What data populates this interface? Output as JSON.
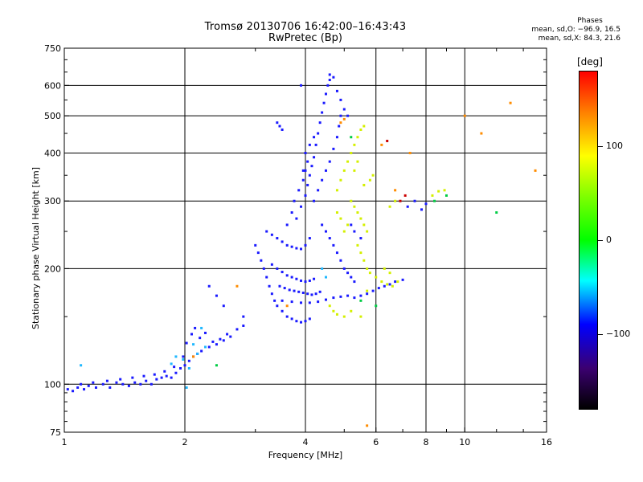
{
  "header": {
    "title_line1": "Tromsø 20130706 16:42:00–16:43:43",
    "title_line2": "RwPretec (Bp)"
  },
  "phases_box": {
    "heading": "Phases",
    "line_o": "mean, sd,O: −96.9, 16.5",
    "line_x": "mean, sd,X:  84.3, 21.6"
  },
  "colorbar": {
    "unit_label": "[deg]",
    "ticks": [
      {
        "value": 100,
        "label": "100"
      },
      {
        "value": 0,
        "label": "0"
      },
      {
        "value": -100,
        "label": "−100"
      }
    ],
    "range": [
      -180,
      180
    ],
    "colors": [
      "#000000",
      "#3b0070",
      "#0000ff",
      "#00ffff",
      "#00ff00",
      "#7fff00",
      "#ffff00",
      "#ff7f00",
      "#ff0000"
    ]
  },
  "chart_data": {
    "type": "scatter",
    "xlabel": "Frequency [MHz]",
    "ylabel": "Stationary phase Virtual Height [km]",
    "x_scale": "log",
    "y_scale": "log",
    "xlim": [
      1,
      16
    ],
    "ylim": [
      75,
      750
    ],
    "x_ticks": [
      1,
      2,
      4,
      6,
      8,
      10,
      16
    ],
    "x_tick_labels": [
      "1",
      "2",
      "4",
      "6",
      "8",
      "10",
      "16"
    ],
    "y_ticks": [
      75,
      100,
      200,
      300,
      400,
      500,
      600,
      750
    ],
    "y_tick_labels": [
      "75",
      "100",
      "200",
      "300",
      "400",
      "500",
      "600",
      "750"
    ],
    "grid": true,
    "series": [
      {
        "color": "#1a1aff",
        "points": [
          [
            1.02,
            97
          ],
          [
            1.05,
            96
          ],
          [
            1.08,
            98
          ],
          [
            1.12,
            97
          ],
          [
            1.15,
            99
          ],
          [
            1.2,
            98
          ],
          [
            1.25,
            100
          ],
          [
            1.3,
            98
          ],
          [
            1.35,
            101
          ],
          [
            1.4,
            100
          ],
          [
            1.45,
            99
          ],
          [
            1.5,
            101
          ],
          [
            1.55,
            100
          ],
          [
            1.6,
            102
          ],
          [
            1.65,
            100
          ],
          [
            1.7,
            103
          ],
          [
            1.75,
            104
          ],
          [
            1.8,
            105
          ],
          [
            1.85,
            104
          ],
          [
            1.9,
            107
          ],
          [
            1.95,
            110
          ],
          [
            2.0,
            112
          ],
          [
            2.05,
            115
          ],
          [
            2.1,
            118
          ],
          [
            2.15,
            120
          ],
          [
            2.2,
            122
          ],
          [
            2.3,
            125
          ],
          [
            2.4,
            127
          ],
          [
            2.5,
            130
          ],
          [
            2.6,
            133
          ],
          [
            1.1,
            100
          ],
          [
            1.18,
            101
          ],
          [
            1.28,
            102
          ],
          [
            1.38,
            103
          ],
          [
            1.48,
            104
          ],
          [
            1.58,
            105
          ],
          [
            1.68,
            106
          ],
          [
            1.78,
            108
          ],
          [
            1.88,
            111
          ],
          [
            1.98,
            118
          ],
          [
            2.02,
            128
          ],
          [
            2.08,
            135
          ],
          [
            2.12,
            140
          ],
          [
            2.18,
            132
          ],
          [
            2.25,
            136
          ],
          [
            2.35,
            129
          ],
          [
            2.45,
            131
          ],
          [
            2.55,
            135
          ],
          [
            2.7,
            139
          ],
          [
            2.8,
            142
          ],
          [
            2.4,
            170
          ],
          [
            2.3,
            180
          ],
          [
            2.5,
            160
          ],
          [
            2.8,
            150
          ],
          [
            3.0,
            230
          ],
          [
            3.05,
            220
          ],
          [
            3.1,
            210
          ],
          [
            3.15,
            200
          ],
          [
            3.2,
            190
          ],
          [
            3.25,
            180
          ],
          [
            3.3,
            172
          ],
          [
            3.35,
            165
          ],
          [
            3.4,
            160
          ],
          [
            3.5,
            155
          ],
          [
            3.6,
            150
          ],
          [
            3.7,
            148
          ],
          [
            3.8,
            146
          ],
          [
            3.9,
            145
          ],
          [
            4.0,
            146
          ],
          [
            4.1,
            148
          ],
          [
            3.2,
            250
          ],
          [
            3.3,
            245
          ],
          [
            3.4,
            240
          ],
          [
            3.5,
            235
          ],
          [
            3.6,
            230
          ],
          [
            3.7,
            228
          ],
          [
            3.8,
            226
          ],
          [
            3.9,
            225
          ],
          [
            4.0,
            230
          ],
          [
            4.1,
            240
          ],
          [
            3.3,
            205
          ],
          [
            3.4,
            200
          ],
          [
            3.5,
            196
          ],
          [
            3.6,
            192
          ],
          [
            3.7,
            190
          ],
          [
            3.8,
            188
          ],
          [
            3.9,
            186
          ],
          [
            4.0,
            185
          ],
          [
            4.1,
            186
          ],
          [
            4.2,
            188
          ],
          [
            3.45,
            180
          ],
          [
            3.55,
            178
          ],
          [
            3.65,
            176
          ],
          [
            3.75,
            175
          ],
          [
            3.85,
            174
          ],
          [
            3.95,
            173
          ],
          [
            4.05,
            172
          ],
          [
            4.15,
            171
          ],
          [
            4.25,
            172
          ],
          [
            4.35,
            174
          ],
          [
            3.5,
            165
          ],
          [
            3.7,
            164
          ],
          [
            3.9,
            163
          ],
          [
            4.1,
            163
          ],
          [
            4.3,
            164
          ],
          [
            4.5,
            166
          ],
          [
            4.7,
            168
          ],
          [
            4.9,
            169
          ],
          [
            5.1,
            170
          ],
          [
            5.3,
            168
          ],
          [
            3.8,
            270
          ],
          [
            3.9,
            290
          ],
          [
            4.0,
            310
          ],
          [
            4.05,
            330
          ],
          [
            4.1,
            350
          ],
          [
            4.15,
            370
          ],
          [
            4.2,
            390
          ],
          [
            4.25,
            420
          ],
          [
            4.3,
            450
          ],
          [
            4.35,
            480
          ],
          [
            4.4,
            510
          ],
          [
            4.45,
            540
          ],
          [
            4.5,
            570
          ],
          [
            4.55,
            600
          ],
          [
            4.6,
            620
          ],
          [
            4.2,
            300
          ],
          [
            4.3,
            320
          ],
          [
            4.4,
            340
          ],
          [
            4.5,
            360
          ],
          [
            4.6,
            380
          ],
          [
            4.7,
            410
          ],
          [
            4.8,
            440
          ],
          [
            4.85,
            470
          ],
          [
            4.9,
            500
          ],
          [
            3.6,
            260
          ],
          [
            3.7,
            280
          ],
          [
            3.75,
            300
          ],
          [
            3.85,
            320
          ],
          [
            3.95,
            340
          ],
          [
            4.0,
            360
          ],
          [
            3.9,
            600
          ],
          [
            4.6,
            640
          ],
          [
            4.7,
            630
          ],
          [
            3.4,
            480
          ],
          [
            3.45,
            470
          ],
          [
            3.5,
            460
          ],
          [
            4.8,
            580
          ],
          [
            4.9,
            550
          ],
          [
            5.0,
            520
          ],
          [
            5.1,
            500
          ],
          [
            4.4,
            260
          ],
          [
            4.5,
            250
          ],
          [
            4.6,
            240
          ],
          [
            4.7,
            230
          ],
          [
            4.8,
            220
          ],
          [
            4.9,
            210
          ],
          [
            5.0,
            200
          ],
          [
            5.1,
            195
          ],
          [
            5.2,
            190
          ],
          [
            5.3,
            185
          ],
          [
            5.5,
            170
          ],
          [
            5.7,
            172
          ],
          [
            5.9,
            175
          ],
          [
            6.1,
            178
          ],
          [
            6.3,
            180
          ],
          [
            6.5,
            182
          ],
          [
            6.7,
            185
          ],
          [
            7.0,
            187
          ],
          [
            7.2,
            290
          ],
          [
            7.5,
            300
          ],
          [
            7.8,
            285
          ],
          [
            8.0,
            295
          ],
          [
            4.0,
            400
          ],
          [
            4.1,
            420
          ],
          [
            4.2,
            440
          ],
          [
            4.05,
            380
          ],
          [
            3.95,
            360
          ],
          [
            5.2,
            260
          ],
          [
            5.3,
            250
          ],
          [
            5.5,
            240
          ]
        ]
      },
      {
        "color": "#d4f000",
        "points": [
          [
            4.8,
            320
          ],
          [
            4.9,
            340
          ],
          [
            5.0,
            360
          ],
          [
            5.1,
            380
          ],
          [
            5.2,
            400
          ],
          [
            5.3,
            420
          ],
          [
            5.4,
            440
          ],
          [
            5.5,
            460
          ],
          [
            5.6,
            470
          ],
          [
            5.2,
            300
          ],
          [
            5.3,
            290
          ],
          [
            5.4,
            280
          ],
          [
            5.5,
            270
          ],
          [
            5.6,
            260
          ],
          [
            5.7,
            250
          ],
          [
            5.4,
            230
          ],
          [
            5.5,
            220
          ],
          [
            5.6,
            210
          ],
          [
            5.7,
            200
          ],
          [
            5.8,
            195
          ],
          [
            6.0,
            190
          ],
          [
            6.2,
            185
          ],
          [
            6.4,
            182
          ],
          [
            6.6,
            180
          ],
          [
            6.8,
            185
          ],
          [
            5.0,
            250
          ],
          [
            5.1,
            260
          ],
          [
            4.9,
            270
          ],
          [
            4.8,
            280
          ],
          [
            5.6,
            330
          ],
          [
            5.8,
            340
          ],
          [
            5.9,
            350
          ],
          [
            5.3,
            360
          ],
          [
            5.4,
            380
          ],
          [
            4.6,
            160
          ],
          [
            4.7,
            155
          ],
          [
            4.8,
            152
          ],
          [
            5.0,
            150
          ],
          [
            5.2,
            155
          ],
          [
            8.3,
            310
          ],
          [
            8.6,
            318
          ],
          [
            8.9,
            320
          ],
          [
            6.5,
            290
          ],
          [
            6.7,
            300
          ],
          [
            6.3,
            200
          ],
          [
            6.5,
            195
          ],
          [
            5.5,
            150
          ],
          [
            5.7,
            175
          ]
        ]
      },
      {
        "color": "#1fb8ff",
        "points": [
          [
            1.1,
            112
          ],
          [
            1.9,
            118
          ],
          [
            2.02,
            98
          ],
          [
            2.1,
            127
          ],
          [
            2.2,
            140
          ],
          [
            2.15,
            120
          ],
          [
            2.05,
            110
          ],
          [
            1.98,
            116
          ],
          [
            4.4,
            200
          ],
          [
            4.5,
            190
          ],
          [
            1.85,
            113
          ],
          [
            2.25,
            125
          ]
        ]
      },
      {
        "color": "#ff8c00",
        "points": [
          [
            2.7,
            180
          ],
          [
            3.6,
            160
          ],
          [
            4.9,
            480
          ],
          [
            5.0,
            490
          ],
          [
            6.2,
            420
          ],
          [
            6.7,
            320
          ],
          [
            7.3,
            400
          ],
          [
            10.0,
            500
          ],
          [
            11.0,
            450
          ],
          [
            13.0,
            540
          ],
          [
            15.0,
            360
          ],
          [
            2.1,
            118
          ],
          [
            5.7,
            78
          ]
        ]
      },
      {
        "color": "#00cc44",
        "points": [
          [
            2.4,
            112
          ],
          [
            5.5,
            165
          ],
          [
            6.0,
            160
          ],
          [
            9.0,
            310
          ],
          [
            8.4,
            300
          ],
          [
            12.0,
            280
          ],
          [
            5.2,
            440
          ]
        ]
      },
      {
        "color": "#cc0000",
        "points": [
          [
            6.4,
            430
          ],
          [
            6.9,
            300
          ],
          [
            7.1,
            310
          ]
        ]
      }
    ]
  }
}
